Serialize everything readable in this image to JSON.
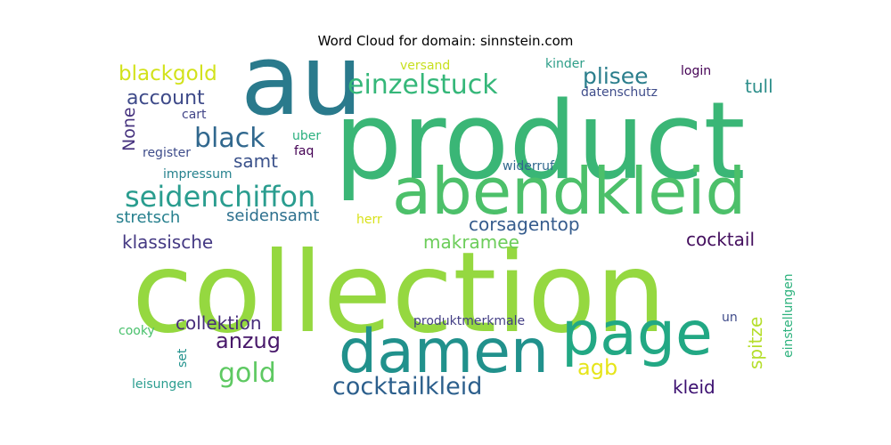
{
  "title": "Word Cloud for domain: sinnstein.com",
  "words": [
    {
      "text": "product",
      "color": "#3ab676"
    },
    {
      "text": "collection",
      "color": "#95d840"
    },
    {
      "text": "au",
      "color": "#2a7a8c"
    },
    {
      "text": "abendkleid",
      "color": "#4cc06a"
    },
    {
      "text": "damen",
      "color": "#21918c"
    },
    {
      "text": "page",
      "color": "#22a884"
    },
    {
      "text": "seidenchiffon",
      "color": "#2a9d8f"
    },
    {
      "text": "einzelstuck",
      "color": "#35b779"
    },
    {
      "text": "black",
      "color": "#31688e"
    },
    {
      "text": "blackgold",
      "color": "#d2e21b"
    },
    {
      "text": "account",
      "color": "#3e4a89"
    },
    {
      "text": "plisee",
      "color": "#2b7e8c"
    },
    {
      "text": "tull",
      "color": "#2c8e8a"
    },
    {
      "text": "None",
      "color": "#46327e"
    },
    {
      "text": "cart",
      "color": "#414487"
    },
    {
      "text": "samt",
      "color": "#3b528b"
    },
    {
      "text": "uber",
      "color": "#2ab07f"
    },
    {
      "text": "faq",
      "color": "#440154"
    },
    {
      "text": "register",
      "color": "#3e4c8a"
    },
    {
      "text": "impressum",
      "color": "#26828e"
    },
    {
      "text": "stretsch",
      "color": "#27808e"
    },
    {
      "text": "seidensamt",
      "color": "#2d708e"
    },
    {
      "text": "corsagentop",
      "color": "#365c8d"
    },
    {
      "text": "klassische",
      "color": "#443983"
    },
    {
      "text": "cocktail",
      "color": "#440f5e"
    },
    {
      "text": "makramee",
      "color": "#6ccd5a"
    },
    {
      "text": "collektion",
      "color": "#472d7b"
    },
    {
      "text": "anzug",
      "color": "#48186a"
    },
    {
      "text": "gold",
      "color": "#5ec962"
    },
    {
      "text": "agb",
      "color": "#e6e51a"
    },
    {
      "text": "spitze",
      "color": "#b5de2b"
    },
    {
      "text": "cocktailkleid",
      "color": "#2c5f8c"
    },
    {
      "text": "kleid",
      "color": "#3b0f70"
    },
    {
      "text": "cooky",
      "color": "#4ac16d"
    },
    {
      "text": "set",
      "color": "#21918c"
    },
    {
      "text": "leisungen",
      "color": "#2a9d8f"
    },
    {
      "text": "produktmerkmale",
      "color": "#433e85"
    },
    {
      "text": "un",
      "color": "#3e4a89"
    },
    {
      "text": "einstellungen",
      "color": "#2db27d"
    },
    {
      "text": "versand",
      "color": "#c8e020"
    },
    {
      "text": "kinder",
      "color": "#2e9e89"
    },
    {
      "text": "login",
      "color": "#440154"
    },
    {
      "text": "datenschutz",
      "color": "#3e4c8a"
    },
    {
      "text": "widerruf",
      "color": "#31688e"
    },
    {
      "text": "herr",
      "color": "#d8e219"
    }
  ]
}
